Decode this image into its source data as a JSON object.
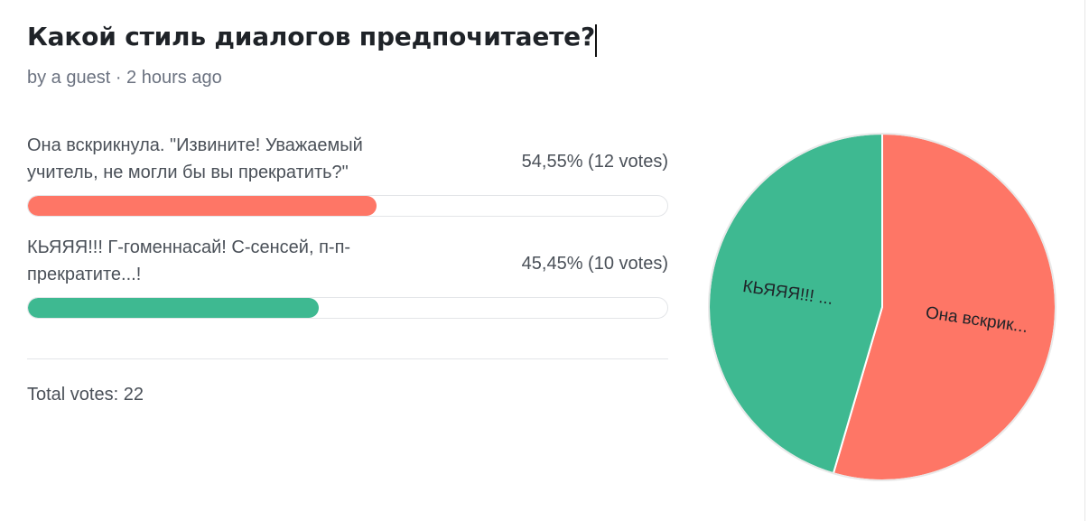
{
  "poll": {
    "title": "Какой стиль диалогов предпочитаете?",
    "meta": "by a guest · 2 hours ago",
    "total_votes": "Total votes: 22"
  },
  "options": [
    {
      "label": "Она вскрикнула. \"Извините! Уважаемый учитель, не могли бы вы прекратить?\"",
      "percent_text": "54,55% (12 votes)",
      "share": 0.5455,
      "color": "#fe7666"
    },
    {
      "label": "КЬЯЯЯ!!! Г-гоменнасай! С-сенсей, п-п-прекратите...!",
      "percent_text": "45,45% (10 votes)",
      "share": 0.4545,
      "color": "#3eb991"
    }
  ],
  "chart_data": {
    "type": "pie",
    "labels": [
      "Она вскрик...",
      "КЬЯЯЯ!!! ..."
    ],
    "values": [
      12,
      10
    ],
    "colors": [
      "#fe7666",
      "#3eb991"
    ]
  }
}
